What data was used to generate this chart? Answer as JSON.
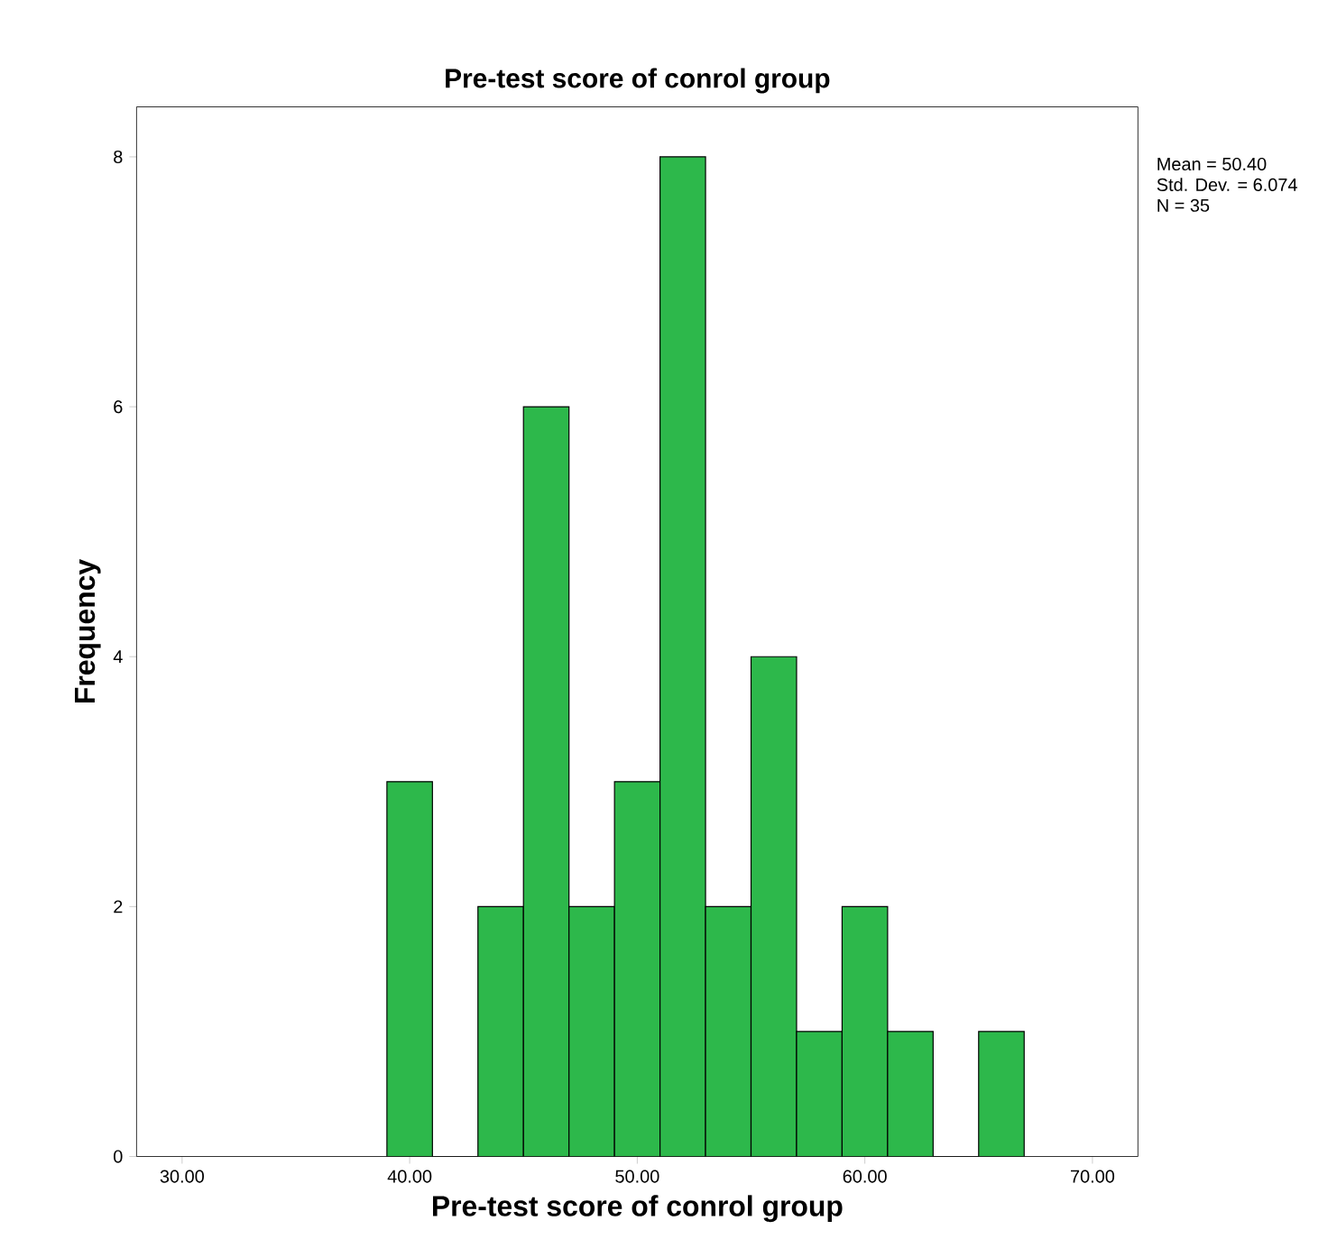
{
  "chart_data": {
    "type": "histogram",
    "title": "Pre-test score of conrol group",
    "xlabel": "Pre-test score of conrol group",
    "ylabel": "Frequency",
    "bins": [
      39,
      41,
      43,
      45,
      47,
      49,
      51,
      53,
      55,
      57,
      59,
      61,
      63,
      65,
      67
    ],
    "values": [
      3,
      0,
      2,
      6,
      2,
      3,
      8,
      2,
      4,
      1,
      2,
      1,
      0,
      1
    ],
    "color": "#2db84b",
    "xlim": [
      28,
      72
    ],
    "ylim": [
      0,
      8.4
    ],
    "xticks": [
      {
        "value": 30,
        "label": "30.00"
      },
      {
        "value": 40,
        "label": "40.00"
      },
      {
        "value": 50,
        "label": "50.00"
      },
      {
        "value": 60,
        "label": "60.00"
      },
      {
        "value": 70,
        "label": "70.00"
      }
    ],
    "yticks": [
      0,
      2,
      4,
      6,
      8
    ],
    "annotations": [
      "Mean = 50.40",
      "Std. Dev. = 6.074",
      "N = 35"
    ]
  }
}
